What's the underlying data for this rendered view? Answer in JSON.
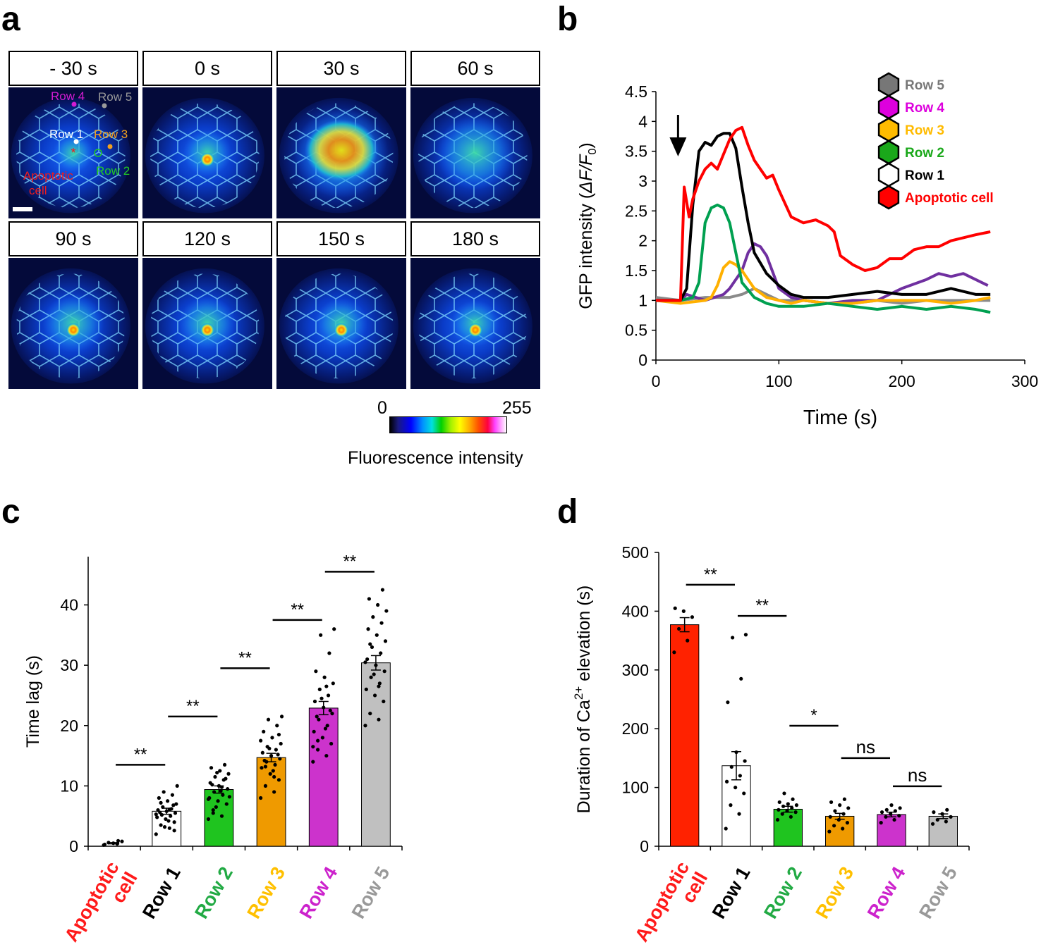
{
  "panels": {
    "a": "a",
    "b": "b",
    "c": "c",
    "d": "d"
  },
  "panel_a": {
    "timepoints": [
      "- 30 s",
      "0 s",
      "30 s",
      "60 s",
      "90 s",
      "120 s",
      "150 s",
      "180 s"
    ],
    "annotations": {
      "row4": "Row 4",
      "row5": "Row 5",
      "row1": "Row 1",
      "row3": "Row 3",
      "row2": "Row 2",
      "apoptotic1": "Apoptotic",
      "apoptotic2": "cell"
    },
    "annotation_colors": {
      "row4": "#d21cd2",
      "row5": "#9a9a9a",
      "row1": "#ffffff",
      "row3": "#f0a020",
      "row2": "#22cc22",
      "apoptotic": "#ee1c1c"
    },
    "colorbar": {
      "min": "0",
      "max": "255",
      "label": "Fluorescence intensity"
    }
  },
  "chart_data": [
    {
      "type": "line",
      "panel": "b",
      "xlabel": "Time (s)",
      "ylabel": "GFP intensity (ΔF/F0)",
      "xlim": [
        0,
        300
      ],
      "ylim": [
        0,
        4.5
      ],
      "xticks": [
        "0",
        "100",
        "200",
        "300"
      ],
      "yticks": [
        "0",
        "0.5",
        "1",
        "1.5",
        "2",
        "2.5",
        "3",
        "3.5",
        "4",
        "4.5"
      ],
      "legend_position": "top-right",
      "arrow_at_x": 18,
      "series": [
        {
          "name": "Row 5",
          "color": "#8a8a8a",
          "x": [
            0,
            20,
            40,
            60,
            70,
            80,
            90,
            100,
            120,
            140,
            160,
            180,
            200,
            220,
            240,
            260,
            272
          ],
          "y": [
            1.05,
            1.0,
            1.05,
            1.05,
            1.1,
            1.2,
            1.1,
            1.0,
            1.0,
            0.95,
            0.95,
            1.0,
            0.95,
            1.0,
            1.0,
            1.0,
            1.0
          ]
        },
        {
          "name": "Row 4",
          "color": "#7030a0",
          "x": [
            0,
            20,
            25,
            40,
            55,
            60,
            70,
            75,
            80,
            85,
            90,
            100,
            110,
            120,
            140,
            160,
            180,
            190,
            200,
            220,
            230,
            240,
            250,
            260,
            270
          ],
          "y": [
            1.0,
            1.0,
            1.1,
            1.0,
            1.1,
            1.2,
            1.5,
            1.8,
            1.95,
            1.9,
            1.75,
            1.2,
            1.05,
            1.0,
            0.95,
            1.0,
            1.0,
            1.1,
            1.2,
            1.35,
            1.45,
            1.4,
            1.45,
            1.35,
            1.25
          ]
        },
        {
          "name": "Row 3",
          "color": "#ffb000",
          "x": [
            0,
            20,
            40,
            45,
            50,
            55,
            60,
            65,
            70,
            75,
            80,
            90,
            100,
            110,
            120,
            140,
            160,
            180,
            200,
            220,
            240,
            260,
            272
          ],
          "y": [
            1.0,
            0.95,
            1.0,
            1.05,
            1.25,
            1.55,
            1.65,
            1.6,
            1.5,
            1.35,
            1.2,
            1.05,
            1.0,
            0.95,
            1.0,
            0.95,
            0.95,
            1.0,
            1.0,
            1.0,
            0.95,
            1.0,
            1.05
          ]
        },
        {
          "name": "Row 2",
          "color": "#00a050",
          "x": [
            0,
            20,
            30,
            35,
            40,
            45,
            50,
            55,
            60,
            65,
            70,
            80,
            90,
            100,
            110,
            120,
            140,
            160,
            180,
            200,
            220,
            240,
            260,
            272
          ],
          "y": [
            1.0,
            1.0,
            1.05,
            1.3,
            2.3,
            2.55,
            2.6,
            2.55,
            2.3,
            1.8,
            1.3,
            1.05,
            0.95,
            0.9,
            0.9,
            0.9,
            0.95,
            0.9,
            0.85,
            0.9,
            0.85,
            0.9,
            0.85,
            0.8
          ]
        },
        {
          "name": "Row 1",
          "color": "#000000",
          "x": [
            0,
            20,
            25,
            30,
            35,
            40,
            45,
            50,
            55,
            60,
            65,
            70,
            75,
            80,
            90,
            100,
            110,
            120,
            140,
            160,
            180,
            200,
            220,
            240,
            260,
            272
          ],
          "y": [
            1.0,
            1.0,
            1.2,
            2.6,
            3.5,
            3.65,
            3.6,
            3.75,
            3.8,
            3.8,
            3.55,
            2.9,
            2.3,
            1.8,
            1.45,
            1.25,
            1.1,
            1.05,
            1.05,
            1.1,
            1.15,
            1.1,
            1.1,
            1.2,
            1.1,
            1.1
          ]
        },
        {
          "name": "Apoptotic cell",
          "color": "#ff0000",
          "x": [
            0,
            20,
            23,
            27,
            30,
            35,
            40,
            45,
            50,
            55,
            60,
            65,
            70,
            75,
            80,
            90,
            95,
            100,
            110,
            120,
            130,
            140,
            145,
            150,
            160,
            170,
            180,
            190,
            200,
            210,
            220,
            230,
            240,
            250,
            260,
            272
          ],
          "y": [
            1.0,
            1.0,
            2.9,
            2.4,
            2.7,
            3.0,
            3.2,
            3.3,
            3.2,
            3.45,
            3.7,
            3.85,
            3.9,
            3.6,
            3.35,
            3.05,
            3.1,
            2.85,
            2.4,
            2.3,
            2.35,
            2.25,
            2.15,
            1.75,
            1.6,
            1.5,
            1.55,
            1.7,
            1.7,
            1.85,
            1.9,
            1.9,
            2.0,
            2.05,
            2.1,
            2.15
          ]
        }
      ]
    },
    {
      "type": "bar",
      "panel": "c",
      "ylabel": "Time lag (s)",
      "ylim": [
        0,
        48
      ],
      "yticks": [
        "0",
        "10",
        "20",
        "30",
        "40"
      ],
      "categories": [
        "Apoptotic\ncell",
        "Row 1",
        "Row 2",
        "Row 3",
        "Row 4",
        "Row 5"
      ],
      "category_colors": [
        "#ff1a1a",
        "#000000",
        "#22aa44",
        "#ffc000",
        "#cc22cc",
        "#999999"
      ],
      "bar_colors": [
        "none",
        "#ffffff",
        "#1fc41f",
        "#ef9a00",
        "#cc33cc",
        "#c0c0c0"
      ],
      "values": [
        0.5,
        5.8,
        9.4,
        14.7,
        22.9,
        30.4
      ],
      "sem": [
        0.1,
        0.5,
        0.6,
        0.7,
        1.1,
        1.2
      ],
      "points": [
        [
          0.2,
          0.4,
          0.6,
          0.8,
          0.5,
          0.3,
          0.9
        ],
        [
          2,
          3,
          3.5,
          4,
          4.5,
          4.8,
          5,
          5.2,
          5.5,
          5.8,
          6,
          6.2,
          6.5,
          7,
          7.5,
          8,
          8.5,
          9,
          10,
          4.2,
          5.6,
          6.8,
          3.2,
          5.3,
          6.1,
          7.2,
          2.6
        ],
        [
          4.5,
          5,
          6,
          7,
          7.5,
          8,
          8.5,
          9,
          9.5,
          10,
          10.5,
          11,
          11.5,
          12,
          12.5,
          13,
          13.5,
          6.5,
          8.2,
          9.2,
          10.2,
          11.2,
          12.2,
          7.8,
          9.8,
          5.5
        ],
        [
          8,
          9,
          10,
          11,
          12,
          13,
          13.5,
          14,
          14.5,
          15,
          15.5,
          16,
          16.5,
          17,
          18,
          19,
          20,
          21,
          21.5,
          12.5,
          14.2,
          15.2,
          16.2,
          17.5,
          11.5,
          13.2,
          18.5
        ],
        [
          14,
          15,
          16,
          17,
          18,
          19,
          20,
          21,
          22,
          23,
          24,
          25,
          26,
          27,
          28,
          29,
          32,
          35,
          36,
          19.5,
          21.5,
          22.5,
          24.5,
          16.5,
          26.5,
          17.5
        ],
        [
          20,
          21,
          22,
          24,
          25,
          26,
          27,
          28,
          29,
          30,
          31,
          32,
          33,
          34,
          35,
          36,
          37,
          38,
          39,
          40,
          41,
          42.5,
          28.5,
          30.5,
          26.5,
          33.5
        ]
      ],
      "significance": [
        {
          "from": 0,
          "to": 1,
          "label": "**",
          "y": 13.5
        },
        {
          "from": 1,
          "to": 2,
          "label": "**",
          "y": 21.5
        },
        {
          "from": 2,
          "to": 3,
          "label": "**",
          "y": 29.5
        },
        {
          "from": 3,
          "to": 4,
          "label": "**",
          "y": 37.5
        },
        {
          "from": 4,
          "to": 5,
          "label": "**",
          "y": 45.5
        }
      ]
    },
    {
      "type": "bar",
      "panel": "d",
      "ylabel": "Duration of Ca2+ elevation (s)",
      "ylim": [
        0,
        500
      ],
      "yticks": [
        "0",
        "100",
        "200",
        "300",
        "400",
        "500"
      ],
      "categories": [
        "Apoptotic\ncell",
        "Row 1",
        "Row 2",
        "Row 3",
        "Row 4",
        "Row 5"
      ],
      "category_colors": [
        "#ff1a1a",
        "#000000",
        "#22aa44",
        "#ffc000",
        "#cc22cc",
        "#999999"
      ],
      "bar_colors": [
        "#ff2200",
        "#ffffff",
        "#1fc41f",
        "#ef9a00",
        "#cc33cc",
        "#c0c0c0"
      ],
      "values": [
        377,
        137,
        63,
        51,
        54,
        51
      ],
      "sem": [
        12,
        24,
        5,
        5,
        4,
        4
      ],
      "points": [
        [
          330,
          350,
          370,
          390,
          400,
          405
        ],
        [
          30,
          55,
          70,
          90,
          100,
          110,
          120,
          135,
          145,
          160,
          245,
          285,
          355,
          360
        ],
        [
          45,
          50,
          55,
          58,
          60,
          62,
          65,
          68,
          70,
          72,
          75,
          80,
          90
        ],
        [
          25,
          30,
          35,
          40,
          45,
          50,
          55,
          60,
          65,
          70,
          75,
          80
        ],
        [
          40,
          45,
          50,
          52,
          55,
          58,
          60,
          62,
          65,
          70
        ],
        [
          38,
          42,
          45,
          50,
          55,
          58,
          62
        ]
      ],
      "significance": [
        {
          "from": 0,
          "to": 1,
          "label": "**",
          "y": 445
        },
        {
          "from": 1,
          "to": 2,
          "label": "**",
          "y": 392
        },
        {
          "from": 2,
          "to": 3,
          "label": "*",
          "y": 205
        },
        {
          "from": 3,
          "to": 4,
          "label": "ns",
          "y": 150
        },
        {
          "from": 4,
          "to": 5,
          "label": "ns",
          "y": 102
        }
      ]
    }
  ]
}
